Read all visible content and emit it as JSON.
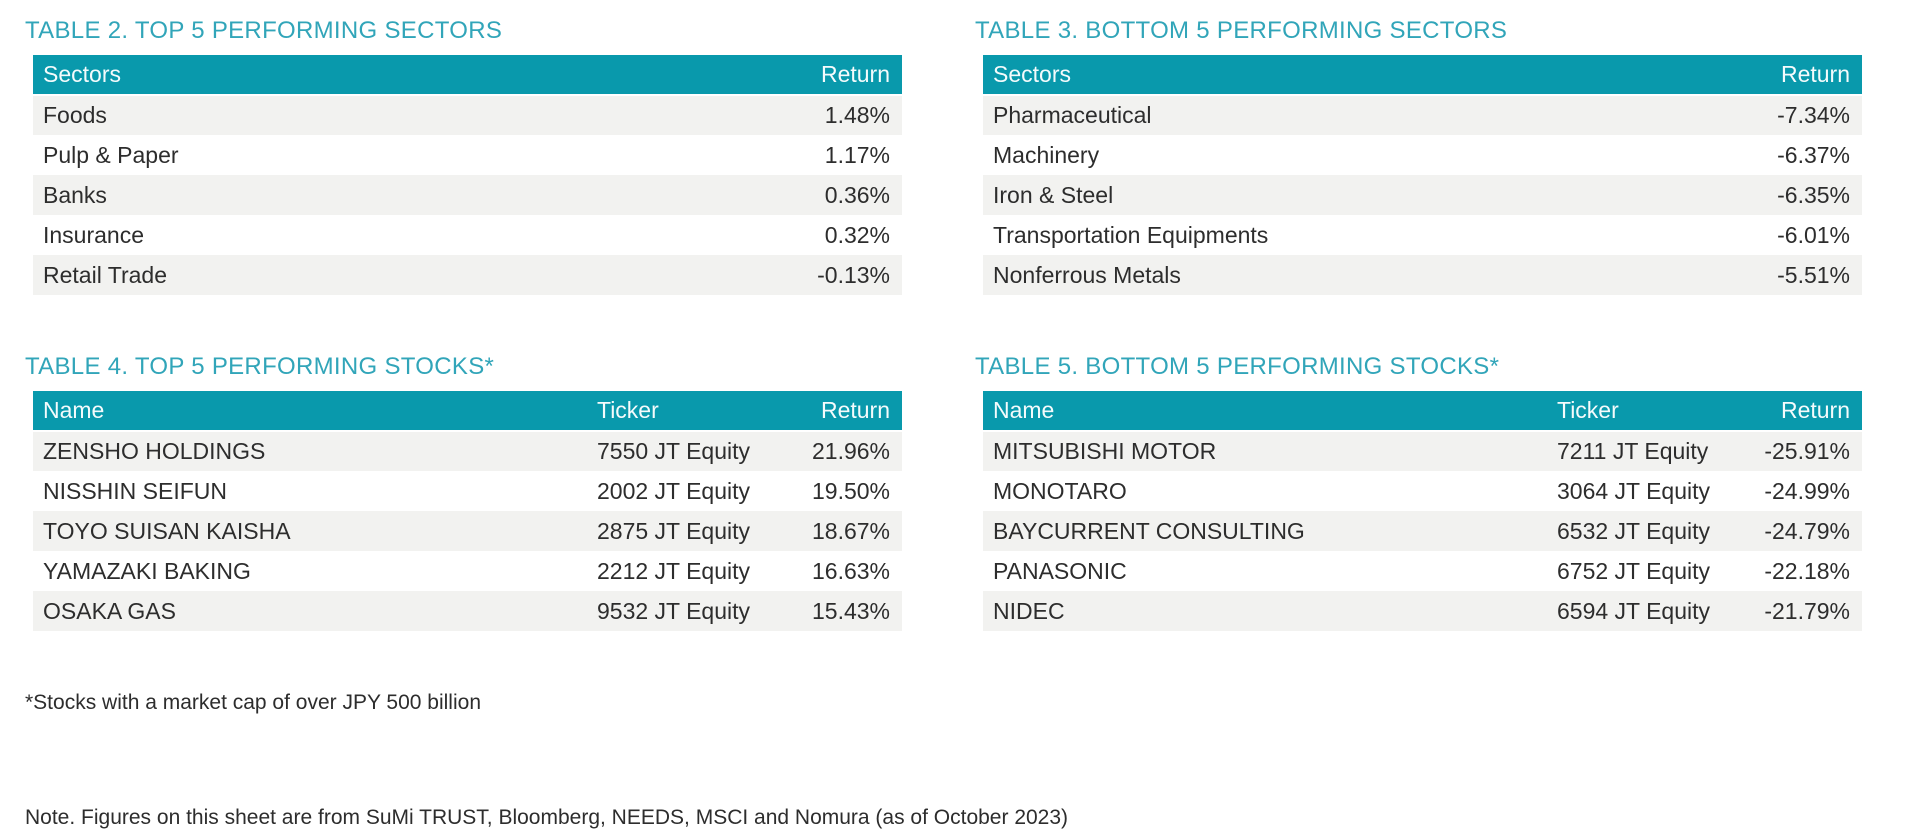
{
  "theme": {
    "accent_teal": "#0999AC",
    "title_teal": "#31A5B9",
    "row_alt_gray": "#F2F2F0",
    "body_text": "#2d2d2d",
    "header_text": "#ffffff"
  },
  "tables": [
    {
      "title": "TABLE 2. TOP 5 PERFORMING SECTORS",
      "columns": [
        "Sectors",
        "Return"
      ],
      "rows": [
        [
          "Foods",
          "1.48%"
        ],
        [
          "Pulp & Paper",
          "1.17%"
        ],
        [
          "Banks",
          "0.36%"
        ],
        [
          "Insurance",
          "0.32%"
        ],
        [
          "Retail Trade",
          "-0.13%"
        ]
      ]
    },
    {
      "title": "TABLE 3. BOTTOM 5 PERFORMING SECTORS",
      "columns": [
        "Sectors",
        "Return"
      ],
      "rows": [
        [
          "Pharmaceutical",
          "-7.34%"
        ],
        [
          "Machinery",
          "-6.37%"
        ],
        [
          "Iron & Steel",
          "-6.35%"
        ],
        [
          "Transportation Equipments",
          "-6.01%"
        ],
        [
          "Nonferrous Metals",
          "-5.51%"
        ]
      ]
    },
    {
      "title": "TABLE 4. TOP 5 PERFORMING STOCKS*",
      "columns": [
        "Name",
        "Ticker",
        "Return"
      ],
      "rows": [
        [
          "ZENSHO HOLDINGS",
          "7550 JT Equity",
          "21.96%"
        ],
        [
          "NISSHIN SEIFUN",
          "2002 JT Equity",
          "19.50%"
        ],
        [
          "TOYO SUISAN KAISHA",
          "2875 JT Equity",
          "18.67%"
        ],
        [
          "YAMAZAKI BAKING",
          "2212 JT Equity",
          "16.63%"
        ],
        [
          "OSAKA GAS",
          "9532 JT Equity",
          "15.43%"
        ]
      ]
    },
    {
      "title": "TABLE 5. BOTTOM 5 PERFORMING STOCKS*",
      "columns": [
        "Name",
        "Ticker",
        "Return"
      ],
      "rows": [
        [
          "MITSUBISHI MOTOR",
          "7211 JT Equity",
          "-25.91%"
        ],
        [
          "MONOTARO",
          "3064 JT Equity",
          "-24.99%"
        ],
        [
          "BAYCURRENT CONSULTING",
          "6532 JT Equity",
          "-24.79%"
        ],
        [
          "PANASONIC",
          "6752 JT Equity",
          "-22.18%"
        ],
        [
          "NIDEC",
          "6594 JT Equity",
          "-21.79%"
        ]
      ]
    }
  ],
  "footnotes": {
    "market_cap": "*Stocks with a market cap of over JPY 500 billion",
    "source": "Note. Figures on this sheet are from SuMi TRUST, Bloomberg, NEEDS, MSCI and Nomura (as of October 2023)"
  }
}
